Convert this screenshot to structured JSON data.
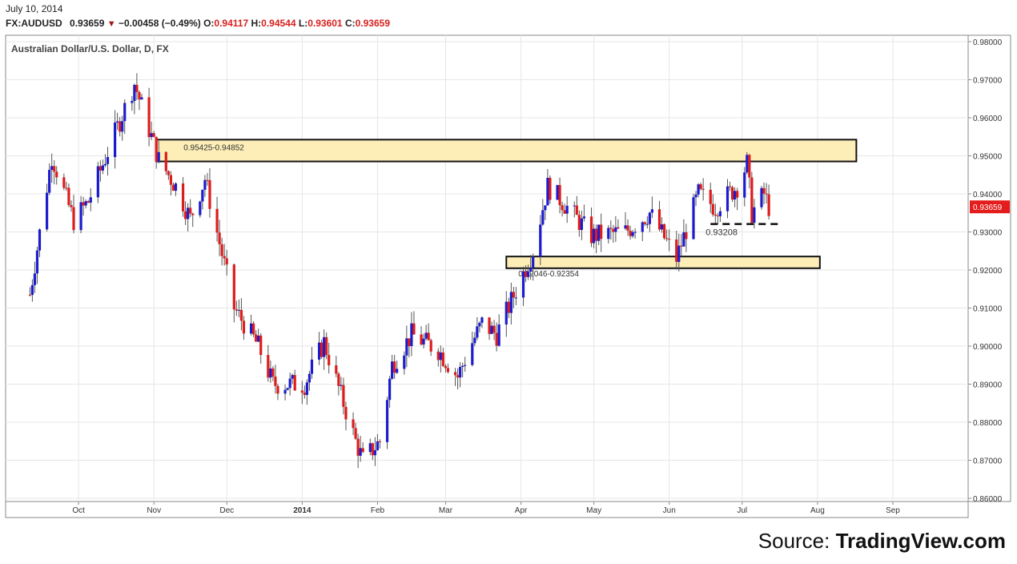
{
  "header": {
    "date": "July 10, 2014",
    "symbol": "FX:AUDUSD",
    "last": "0.93659",
    "change": "−0.00458 (−0.49%)",
    "open_label": "O:",
    "open": "0.94117",
    "high_label": "H:",
    "high": "0.94544",
    "low_label": "L:",
    "low": "0.93601",
    "close_label": "C:",
    "close": "0.93659"
  },
  "source": {
    "prefix": "Source: ",
    "brand": "TradingView.com"
  },
  "colors": {
    "up": "#1c1ccd",
    "down": "#dd1c1c",
    "zone_fill": "#fdeeb8",
    "zone_border": "#111111",
    "grid": "#e6e6e6",
    "price_tag": "#e41c1c"
  },
  "chart_data": {
    "type": "candlestick",
    "title": "Australian Dollar/U.S. Dollar, D, FX",
    "x_ticks": [
      "Oct",
      "Nov",
      "Dec",
      "2014",
      "Feb",
      "Mar",
      "Apr",
      "May",
      "Jun",
      "Jul",
      "Aug",
      "Sep"
    ],
    "y_ticks": [
      "0.98000",
      "0.97000",
      "0.96000",
      "0.95000",
      "0.94000",
      "0.93000",
      "0.92000",
      "0.91000",
      "0.90000",
      "0.89000",
      "0.88000",
      "0.87000",
      "0.86000"
    ],
    "ylim": [
      0.86,
      0.98
    ],
    "last_price": "0.93659",
    "zones": [
      {
        "label": "0.95425-0.94852",
        "low": 0.94852,
        "high": 0.95425,
        "start": "2013-10-31",
        "end": "2014-08-15"
      },
      {
        "label": "0.92046-0.92354",
        "low": 0.92046,
        "high": 0.92354,
        "start": "2014-03-24",
        "end": "2014-07-31"
      }
    ],
    "support_line": {
      "label": "0.93208",
      "value": 0.93208,
      "start": "2014-06-16",
      "end": "2014-07-10"
    },
    "anchors": [
      [
        "2013-09-09",
        0.9135
      ],
      [
        "2013-09-18",
        0.95
      ],
      [
        "2013-09-27",
        0.933
      ],
      [
        "2013-10-03",
        0.938
      ],
      [
        "2013-10-22",
        0.969
      ],
      [
        "2013-11-01",
        0.949
      ],
      [
        "2013-11-08",
        0.942
      ],
      [
        "2013-11-14",
        0.9335
      ],
      [
        "2013-11-20",
        0.944
      ],
      [
        "2013-12-02",
        0.91
      ],
      [
        "2013-12-12",
        0.9
      ],
      [
        "2013-12-18",
        0.89
      ],
      [
        "2013-12-31",
        0.89
      ],
      [
        "2014-01-08",
        0.901
      ],
      [
        "2014-01-21",
        0.875
      ],
      [
        "2014-01-24",
        0.87
      ],
      [
        "2014-01-31",
        0.875
      ],
      [
        "2014-02-05",
        0.895
      ],
      [
        "2014-02-13",
        0.903
      ],
      [
        "2014-02-24",
        0.899
      ],
      [
        "2014-03-04",
        0.892
      ],
      [
        "2014-03-10",
        0.901
      ],
      [
        "2014-03-14",
        0.906
      ],
      [
        "2014-03-20",
        0.903
      ],
      [
        "2014-04-04",
        0.925
      ],
      [
        "2014-04-10",
        0.942
      ],
      [
        "2014-04-16",
        0.938
      ],
      [
        "2014-04-28",
        0.929
      ],
      [
        "2014-05-12",
        0.93
      ],
      [
        "2014-05-22",
        0.935
      ],
      [
        "2014-06-02",
        0.923
      ],
      [
        "2014-06-11",
        0.94
      ],
      [
        "2014-06-18",
        0.9365
      ],
      [
        "2014-06-27",
        0.942
      ],
      [
        "2014-07-01",
        0.948
      ],
      [
        "2014-07-03",
        0.935
      ],
      [
        "2014-07-08",
        0.94
      ],
      [
        "2014-07-10",
        0.9366
      ]
    ]
  }
}
